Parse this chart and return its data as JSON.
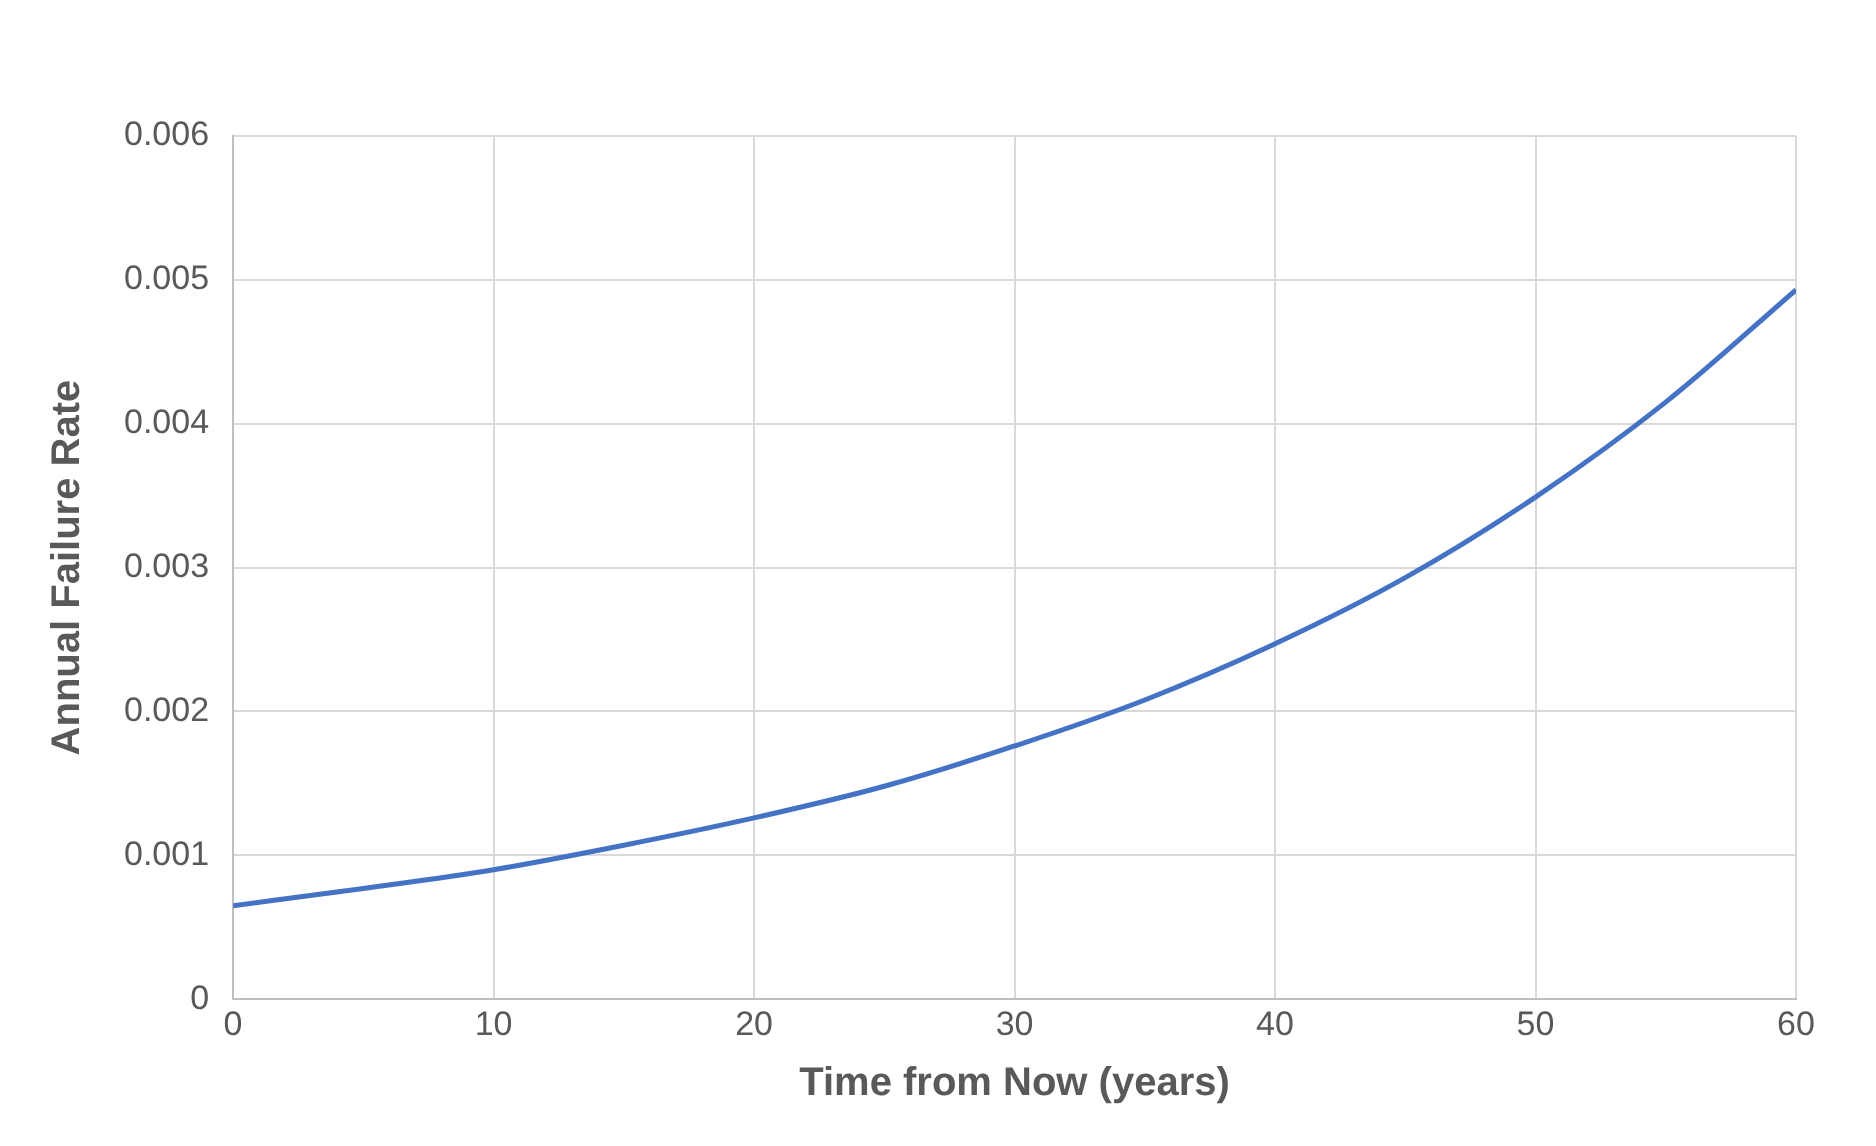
{
  "chart_data": {
    "type": "line",
    "xlabel": "Time from Now (years)",
    "ylabel": "Annual Failure Rate",
    "x": [
      0,
      5,
      10,
      15,
      20,
      25,
      30,
      35,
      40,
      45,
      50,
      55,
      60
    ],
    "series": [
      {
        "color": "#4472c4",
        "values": [
          0.00065,
          0.00077,
          0.0009,
          0.00107,
          0.00126,
          0.00148,
          0.00176,
          0.00208,
          0.00247,
          0.00293,
          0.00349,
          0.00415,
          0.00493
        ]
      }
    ],
    "xlim": [
      0,
      60
    ],
    "xticks": [
      0,
      10,
      20,
      30,
      40,
      50,
      60
    ],
    "ylim": [
      0,
      0.006
    ],
    "yticks": [
      0,
      0.001,
      0.002,
      0.003,
      0.004,
      0.005,
      0.006
    ],
    "grid": true,
    "legend": false,
    "marker": "none",
    "line_style": "solid"
  }
}
